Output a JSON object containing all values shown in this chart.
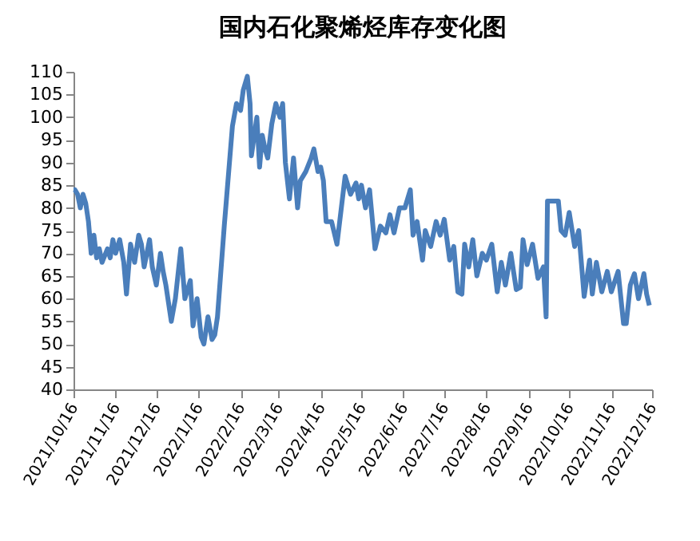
{
  "chart_data": {
    "type": "line",
    "title": "国内石化聚烯烃库存变化图",
    "x": [
      "2021-10-16",
      "2021-10-17",
      "2021-10-19",
      "2021-10-21",
      "2021-10-23",
      "2021-10-25",
      "2021-10-27",
      "2021-10-29",
      "2021-10-31",
      "2021-11-02",
      "2021-11-04",
      "2021-11-06",
      "2021-11-10",
      "2021-11-12",
      "2021-11-14",
      "2021-11-16",
      "2021-11-19",
      "2021-11-22",
      "2021-11-24",
      "2021-11-27",
      "2021-11-30",
      "2021-12-03",
      "2021-12-05",
      "2021-12-07",
      "2021-12-11",
      "2021-12-13",
      "2021-12-16",
      "2021-12-19",
      "2021-12-21",
      "2021-12-23",
      "2021-12-27",
      "2021-12-30",
      "2022-01-03",
      "2022-01-06",
      "2022-01-10",
      "2022-01-12",
      "2022-01-15",
      "2022-01-18",
      "2022-01-20",
      "2022-01-23",
      "2022-01-26",
      "2022-01-28",
      "2022-01-30",
      "2022-02-04",
      "2022-02-10",
      "2022-02-13",
      "2022-02-16",
      "2022-02-18",
      "2022-02-21",
      "2022-02-23",
      "2022-02-24",
      "2022-02-28",
      "2022-03-02",
      "2022-03-04",
      "2022-03-06",
      "2022-03-08",
      "2022-03-11",
      "2022-03-14",
      "2022-03-17",
      "2022-03-19",
      "2022-03-21",
      "2022-03-24",
      "2022-03-27",
      "2022-03-30",
      "2022-04-01",
      "2022-04-05",
      "2022-04-09",
      "2022-04-11",
      "2022-04-14",
      "2022-04-16",
      "2022-04-18",
      "2022-04-20",
      "2022-04-24",
      "2022-04-28",
      "2022-05-04",
      "2022-05-08",
      "2022-05-12",
      "2022-05-14",
      "2022-05-16",
      "2022-05-19",
      "2022-05-22",
      "2022-05-26",
      "2022-05-30",
      "2022-06-03",
      "2022-06-06",
      "2022-06-09",
      "2022-06-13",
      "2022-06-17",
      "2022-06-21",
      "2022-06-23",
      "2022-06-26",
      "2022-06-30",
      "2022-07-02",
      "2022-07-06",
      "2022-07-10",
      "2022-07-13",
      "2022-07-16",
      "2022-07-20",
      "2022-07-23",
      "2022-07-26",
      "2022-07-29",
      "2022-07-31",
      "2022-08-03",
      "2022-08-06",
      "2022-08-09",
      "2022-08-13",
      "2022-08-16",
      "2022-08-20",
      "2022-08-24",
      "2022-08-27",
      "2022-08-30",
      "2022-09-03",
      "2022-09-07",
      "2022-09-10",
      "2022-09-12",
      "2022-09-15",
      "2022-09-19",
      "2022-09-23",
      "2022-09-27",
      "2022-09-29",
      "2022-09-30",
      "2022-10-08",
      "2022-10-10",
      "2022-10-13",
      "2022-10-16",
      "2022-10-20",
      "2022-10-23",
      "2022-10-27",
      "2022-10-31",
      "2022-11-02",
      "2022-11-05",
      "2022-11-09",
      "2022-11-13",
      "2022-11-16",
      "2022-11-21",
      "2022-11-25",
      "2022-11-27",
      "2022-11-30",
      "2022-12-03",
      "2022-12-06",
      "2022-12-10",
      "2022-12-12",
      "2022-12-14"
    ],
    "series": [
      {
        "color": "#4a7ebb",
        "values": [
          84,
          84,
          83,
          80,
          83,
          81,
          77,
          70,
          74,
          69,
          71,
          68,
          71,
          69,
          73,
          70,
          73,
          68,
          61,
          72,
          68,
          74,
          72,
          67,
          73,
          67,
          63,
          70,
          66,
          63,
          55,
          60,
          71,
          60,
          64,
          54,
          60,
          51.5,
          50,
          56,
          51,
          52,
          56,
          76,
          98,
          103,
          101.5,
          106,
          109,
          103,
          91.5,
          100,
          89,
          96,
          93,
          91,
          98.5,
          103,
          100,
          103,
          90,
          82,
          91,
          80,
          86,
          88,
          91,
          93,
          88,
          89,
          86,
          77,
          77,
          72,
          87,
          83,
          85.5,
          82,
          85,
          80,
          84,
          71,
          76,
          74.5,
          78.5,
          74.5,
          80,
          80,
          84,
          74,
          77,
          68.5,
          75,
          71.5,
          77,
          74,
          77.5,
          68.5,
          71.5,
          61.5,
          61,
          72,
          67,
          73,
          65,
          70,
          68.5,
          72,
          61.5,
          68,
          63,
          70,
          62,
          62.5,
          73,
          67.5,
          72,
          64.5,
          67,
          56,
          81.5,
          81.5,
          75,
          74,
          79,
          71.5,
          75,
          60.5,
          68.5,
          61,
          68,
          61.5,
          66,
          61.5,
          66,
          54.5,
          54.5,
          63,
          65.5,
          60,
          65.5,
          61,
          58.5
        ]
      }
    ],
    "xlim": [
      "2021-10-16",
      "2022-12-16"
    ],
    "xticks": [
      {
        "value": "2021-10-16",
        "label": "2021/10/16"
      },
      {
        "value": "2021-11-16",
        "label": "2021/11/16"
      },
      {
        "value": "2021-12-16",
        "label": "2021/12/16"
      },
      {
        "value": "2022-01-16",
        "label": "2022/1/16"
      },
      {
        "value": "2022-02-16",
        "label": "2022/2/16"
      },
      {
        "value": "2022-03-16",
        "label": "2022/3/16"
      },
      {
        "value": "2022-04-16",
        "label": "2022/4/16"
      },
      {
        "value": "2022-05-16",
        "label": "2022/5/16"
      },
      {
        "value": "2022-06-16",
        "label": "2022/6/16"
      },
      {
        "value": "2022-07-16",
        "label": "2022/7/16"
      },
      {
        "value": "2022-08-16",
        "label": "2022/8/16"
      },
      {
        "value": "2022-09-16",
        "label": "2022/9/16"
      },
      {
        "value": "2022-10-16",
        "label": "2022/10/16"
      },
      {
        "value": "2022-11-16",
        "label": "2022/11/16"
      },
      {
        "value": "2022-12-16",
        "label": "2022/12/16"
      }
    ],
    "ylim": [
      40,
      110
    ],
    "yticks": [
      40,
      45,
      50,
      55,
      60,
      65,
      70,
      75,
      80,
      85,
      90,
      95,
      100,
      105,
      110
    ],
    "grid": false,
    "marker": "none",
    "line_style": "solid"
  }
}
